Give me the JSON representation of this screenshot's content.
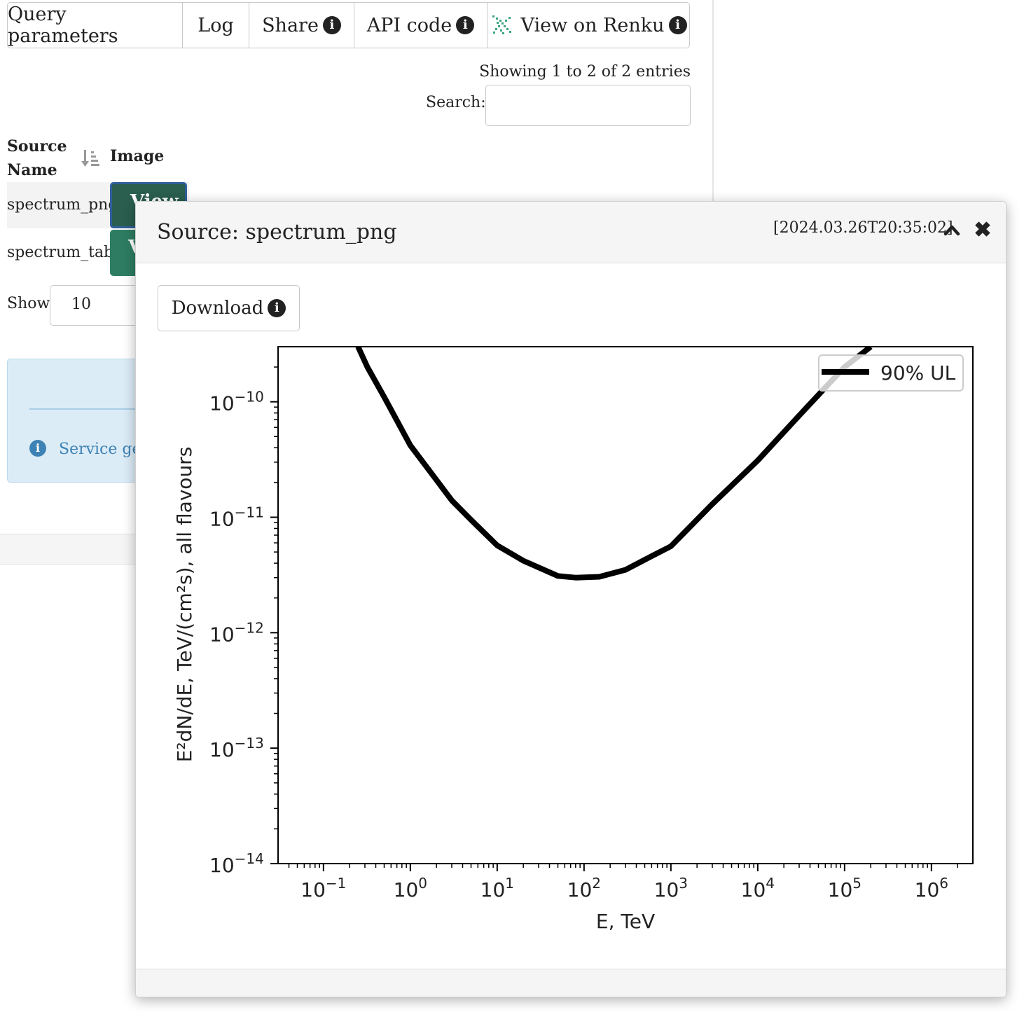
{
  "tabs": [
    {
      "label": "Query parameters",
      "info": false,
      "renku": false
    },
    {
      "label": "Log",
      "info": false,
      "renku": false
    },
    {
      "label": "Share",
      "info": true,
      "renku": false
    },
    {
      "label": "API code",
      "info": true,
      "renku": false
    },
    {
      "label": "View on Renku",
      "info": true,
      "renku": true
    }
  ],
  "table": {
    "summary": "Showing 1 to 2 of 2 entries",
    "search_label": "Search:",
    "search_value": "",
    "headers": {
      "source_name": "Source Name",
      "image": "Image"
    },
    "rows": [
      {
        "name": "spectrum_png",
        "button": "View"
      },
      {
        "name": "spectrum_table",
        "button": "View"
      }
    ],
    "show_label": "Show",
    "show_value": "10"
  },
  "alert": {
    "text": "Service generated"
  },
  "modal": {
    "title": "Source: spectrum_png",
    "timestamp": "[2024.03.26T20:35:02]",
    "close_glyph": "✖",
    "download_label": "Download"
  },
  "chart_data": {
    "type": "line",
    "xlabel": "E, TeV",
    "ylabel": "E²dN/dE, TeV/(cm²s), all flavours",
    "x_scale": "log",
    "y_scale": "log",
    "xlim": [
      0.03,
      3000000
    ],
    "ylim": [
      1e-14,
      3e-10
    ],
    "x_ticks": [
      {
        "value": 0.1,
        "mantissa": "10",
        "exp": "−1"
      },
      {
        "value": 1,
        "mantissa": "10",
        "exp": "0"
      },
      {
        "value": 10,
        "mantissa": "10",
        "exp": "1"
      },
      {
        "value": 100,
        "mantissa": "10",
        "exp": "2"
      },
      {
        "value": 1000,
        "mantissa": "10",
        "exp": "3"
      },
      {
        "value": 10000,
        "mantissa": "10",
        "exp": "4"
      },
      {
        "value": 100000,
        "mantissa": "10",
        "exp": "5"
      },
      {
        "value": 1000000,
        "mantissa": "10",
        "exp": "6"
      }
    ],
    "y_ticks": [
      {
        "value": 1e-14,
        "mantissa": "10",
        "exp": "−14"
      },
      {
        "value": 1e-13,
        "mantissa": "10",
        "exp": "−13"
      },
      {
        "value": 1e-12,
        "mantissa": "10",
        "exp": "−12"
      },
      {
        "value": 1e-11,
        "mantissa": "10",
        "exp": "−11"
      },
      {
        "value": 1e-10,
        "mantissa": "10",
        "exp": "−10"
      }
    ],
    "legend_position": "top-right",
    "series": [
      {
        "name": "90% UL",
        "color": "#000000",
        "x": [
          0.25,
          0.32,
          0.5,
          1,
          2,
          3,
          5,
          10,
          20,
          50,
          80,
          150,
          300,
          600,
          1000,
          3000,
          10000,
          30000,
          100000,
          200000
        ],
        "y": [
          3e-10,
          2e-10,
          1.1e-10,
          4.2e-11,
          2.1e-11,
          1.4e-11,
          9.5e-12,
          5.7e-12,
          4.2e-12,
          3.1e-12,
          3e-12,
          3.05e-12,
          3.5e-12,
          4.6e-12,
          5.6e-12,
          1.3e-11,
          3.1e-11,
          7.6e-11,
          2e-10,
          3e-10
        ]
      }
    ],
    "grid": false
  }
}
